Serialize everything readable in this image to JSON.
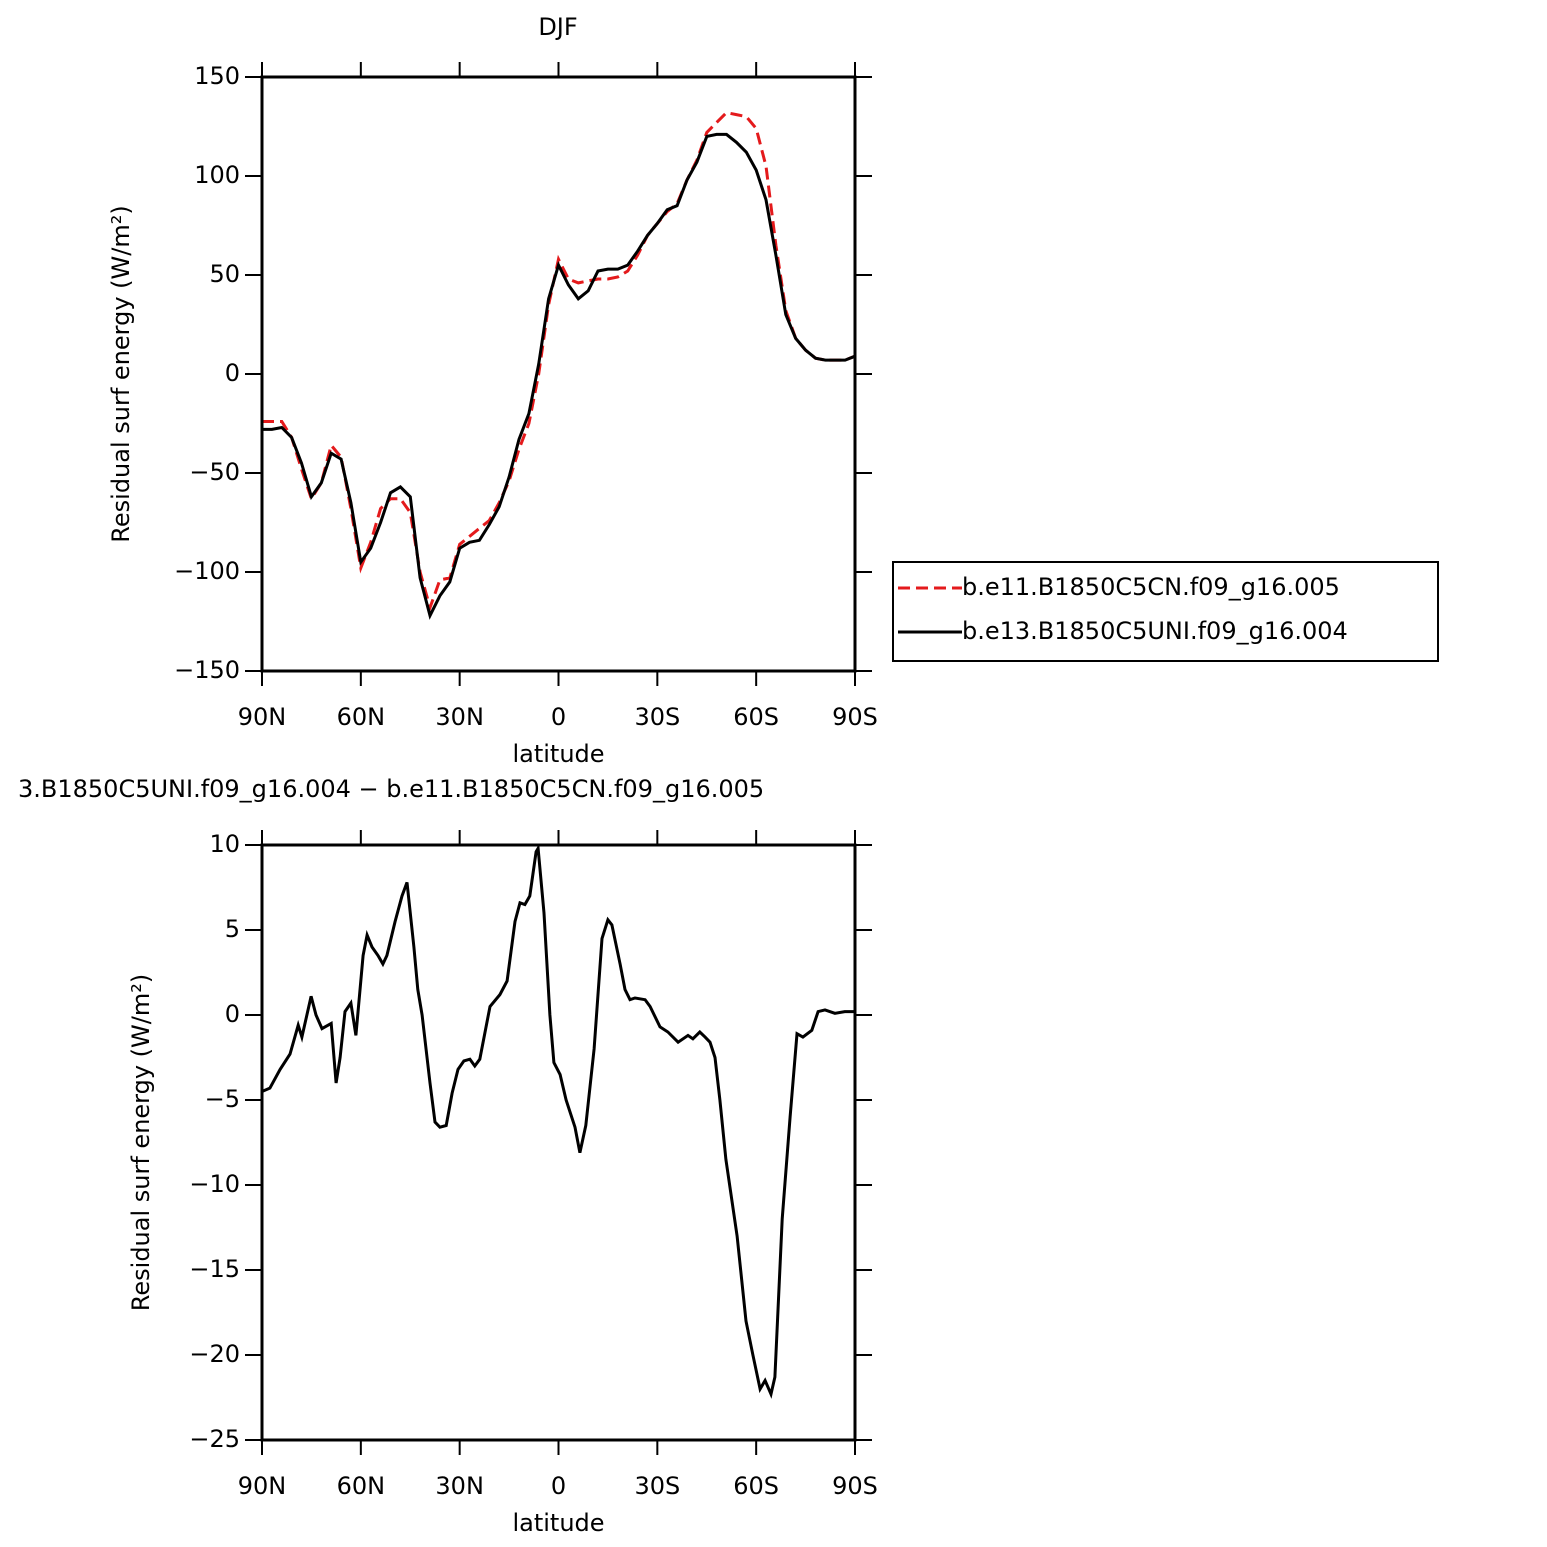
{
  "chart_data": [
    {
      "type": "line",
      "title": "DJF",
      "x_label": "latitude",
      "y_label": "Residual surf energy (W/m²)",
      "x": [
        90,
        87,
        84,
        81,
        78,
        75,
        72,
        69,
        66,
        63,
        60,
        57,
        54,
        51,
        48,
        45,
        42,
        39,
        36,
        33,
        30,
        27,
        24,
        21,
        18,
        15,
        12,
        9,
        6,
        3,
        0,
        -3,
        -6,
        -9,
        -12,
        -15,
        -18,
        -21,
        -24,
        -27,
        -30,
        -33,
        -36,
        -39,
        -42,
        -45,
        -48,
        -51,
        -54,
        -57,
        -60,
        -63,
        -66,
        -69,
        -72,
        -75,
        -78,
        -81,
        -84,
        -87,
        -90
      ],
      "series": [
        {
          "name": "b.e11.B1850C5CN.f09_g16.005",
          "color": "#e41a1c",
          "dashed": true,
          "values": [
            -24,
            -24,
            -24,
            -32,
            -48,
            -63,
            -55,
            -36,
            -42,
            -68,
            -98,
            -85,
            -68,
            -63,
            -63,
            -70,
            -100,
            -118,
            -104,
            -103,
            -86,
            -82,
            -78,
            -74,
            -65,
            -54,
            -38,
            -25,
            0,
            35,
            58,
            48,
            46,
            47,
            48,
            48,
            49,
            52,
            60,
            70,
            76,
            82,
            86,
            98,
            108,
            122,
            127,
            132,
            131,
            130,
            124,
            105,
            65,
            32,
            18,
            12,
            8,
            7,
            7,
            7,
            9
          ]
        },
        {
          "name": "b.e13.B1850C5UNI.f09_g16.004",
          "color": "#000000",
          "dashed": false,
          "values": [
            -28,
            -28,
            -27,
            -32,
            -45,
            -62,
            -55,
            -40,
            -43,
            -65,
            -95,
            -88,
            -75,
            -60,
            -57,
            -62,
            -103,
            -122,
            -112,
            -105,
            -88,
            -85,
            -84,
            -76,
            -67,
            -52,
            -33,
            -20,
            5,
            38,
            55,
            45,
            38,
            42,
            52,
            53,
            53,
            55,
            62,
            70,
            76,
            83,
            85,
            98,
            107,
            120,
            121,
            121,
            117,
            112,
            103,
            88,
            60,
            30,
            18,
            12,
            8,
            7,
            7,
            7,
            9
          ]
        }
      ],
      "xlim": [
        90,
        -90
      ],
      "xticks": [
        {
          "value": 90,
          "label": "90N"
        },
        {
          "value": 60,
          "label": "60N"
        },
        {
          "value": 30,
          "label": "30N"
        },
        0,
        {
          "value": -30,
          "label": "30S"
        },
        {
          "value": -60,
          "label": "60S"
        },
        {
          "value": -90,
          "label": "90S"
        }
      ],
      "ylim": [
        -150,
        150
      ],
      "yticks": [
        {
          "value": -150,
          "label": "−150"
        },
        {
          "value": -100,
          "label": "−100"
        },
        {
          "value": -50,
          "label": "−50"
        },
        0,
        50,
        100,
        150
      ],
      "legend": "right"
    },
    {
      "type": "line",
      "title": "3.B1850C5UNI.f09_g16.004 − b.e11.B1850C5CN.f09_g16.005",
      "x_label": "latitude",
      "y_label": "Residual surf energy (W/m²)",
      "x": [
        90,
        87.6,
        84.5,
        81.5,
        79,
        77.9,
        75.1,
        73.6,
        71.8,
        69,
        67.5,
        66.3,
        64.8,
        63,
        61.5,
        59.3,
        58.1,
        56.6,
        54.8,
        53.3,
        52.1,
        49.6,
        47.5,
        46,
        43.9,
        42.7,
        41.4,
        39,
        37.5,
        36,
        34.1,
        32.3,
        30.5,
        28.7,
        26.9,
        25.4,
        23.9,
        20.8,
        17.8,
        15.6,
        13.2,
        11.7,
        10.2,
        8.7,
        6.8,
        6.2,
        4.4,
        2.6,
        1.4,
        -0.5,
        -2.3,
        -5,
        -6.5,
        -8.3,
        -10.8,
        -13.2,
        -15,
        -16.2,
        -18.7,
        -20.2,
        -21.7,
        -23.2,
        -26.3,
        -27.8,
        -30.8,
        -33.2,
        -36.3,
        -39.3,
        -40.8,
        -42.9,
        -44.5,
        -46,
        -47.5,
        -49,
        -50.8,
        -54.2,
        -56.9,
        -59,
        -61.2,
        -62.7,
        -64.5,
        -65.7,
        -67.9,
        -70.3,
        -72.4,
        -74.2,
        -76.9,
        -78.8,
        -80.9,
        -83.9,
        -86.9,
        -90
      ],
      "color": "#000000",
      "values": [
        -4.5,
        -4.3,
        -3.2,
        -2.3,
        -0.6,
        -1.3,
        1.1,
        0,
        -0.8,
        -0.5,
        -4,
        -2.5,
        0.2,
        0.7,
        -1.2,
        3.5,
        4.7,
        4,
        3.5,
        3,
        3.5,
        5.5,
        7,
        7.8,
        4,
        1.5,
        0,
        -4,
        -6.3,
        -6.6,
        -6.5,
        -4.6,
        -3.2,
        -2.7,
        -2.6,
        -3,
        -2.6,
        0.5,
        1.2,
        2,
        5.5,
        6.6,
        6.5,
        7,
        9.6,
        9.8,
        6,
        0,
        -2.8,
        -3.5,
        -5,
        -6.6,
        -8.1,
        -6.5,
        -2,
        4.5,
        5.6,
        5.3,
        3,
        1.5,
        0.9,
        1,
        0.9,
        0.5,
        -0.7,
        -1,
        -1.6,
        -1.2,
        -1.4,
        -1,
        -1.3,
        -1.6,
        -2.5,
        -5,
        -8.5,
        -13,
        -18,
        -20,
        -22,
        -21.5,
        -22.3,
        -21.3,
        -12,
        -6,
        -1.1,
        -1.3,
        -0.9,
        0.2,
        0.3,
        0.1,
        0.2,
        0.2
      ],
      "xlim": [
        90,
        -90
      ],
      "xticks": [
        {
          "value": 90,
          "label": "90N"
        },
        {
          "value": 60,
          "label": "60N"
        },
        {
          "value": 30,
          "label": "30N"
        },
        0,
        {
          "value": -30,
          "label": "30S"
        },
        {
          "value": -60,
          "label": "60S"
        },
        {
          "value": -90,
          "label": "90S"
        }
      ],
      "ylim": [
        -25,
        10
      ],
      "yticks": [
        {
          "value": -25,
          "label": "−25"
        },
        {
          "value": -20,
          "label": "−20"
        },
        {
          "value": -15,
          "label": "−15"
        },
        {
          "value": -10,
          "label": "−10"
        },
        {
          "value": -5,
          "label": "−5"
        },
        0,
        5,
        10
      ]
    }
  ]
}
